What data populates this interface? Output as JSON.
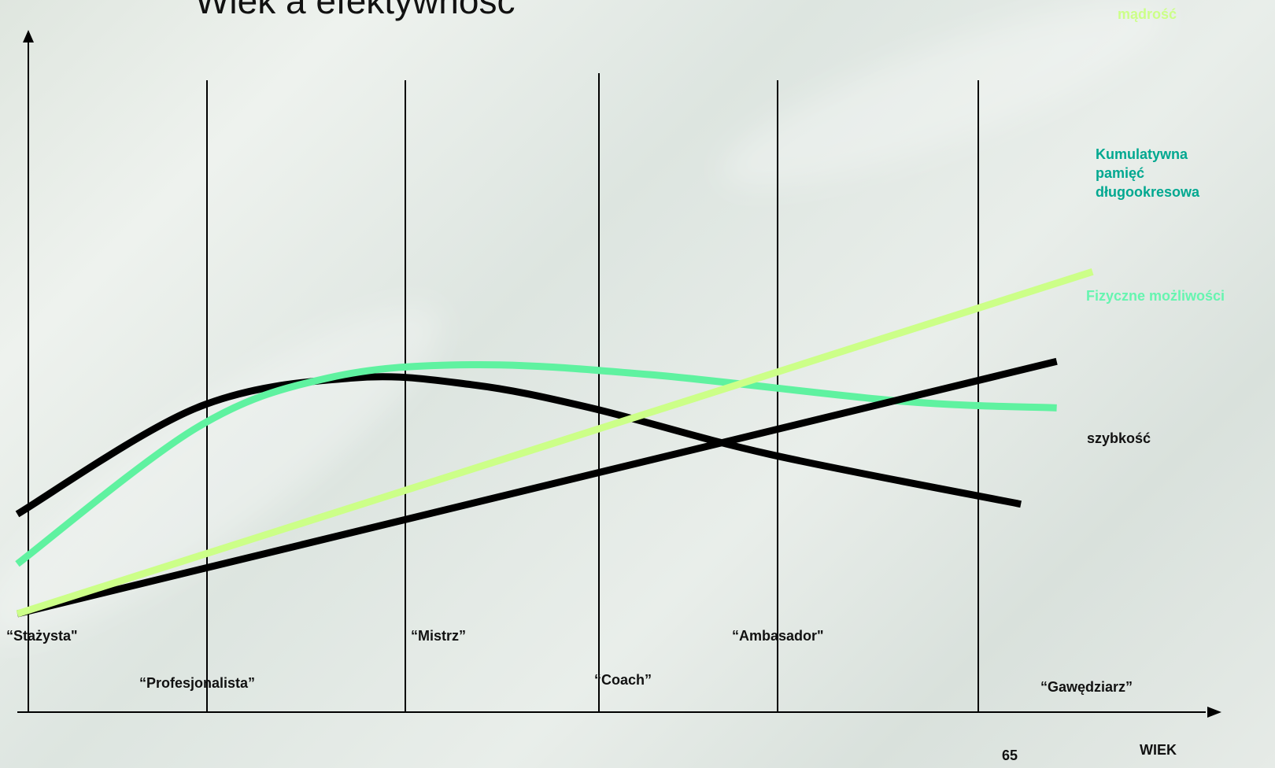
{
  "slide": {
    "title": "Wiek a efektywność"
  },
  "chart_data": {
    "type": "line",
    "title": "Wiek a efektywność",
    "xlabel": "WIEK",
    "x_tick_label": "65",
    "stages": [
      "“Stażysta\"",
      "“Profesjonalista”",
      "“Mistrz”",
      "“Coach”",
      "“Ambasador\"",
      "“Gawędziarz”"
    ],
    "series": [
      {
        "name": "szybkość",
        "color": "#000000",
        "points": [
          [
            0,
            0.3
          ],
          [
            0.15,
            0.62
          ],
          [
            0.28,
            0.71
          ],
          [
            0.38,
            0.69
          ],
          [
            0.48,
            0.62
          ],
          [
            0.63,
            0.48
          ],
          [
            0.84,
            0.33
          ]
        ]
      },
      {
        "name": "Fizyczne możliwości",
        "color": "#5ff2a0",
        "points": [
          [
            0,
            0.15
          ],
          [
            0.15,
            0.56
          ],
          [
            0.26,
            0.71
          ],
          [
            0.38,
            0.75
          ],
          [
            0.53,
            0.72
          ],
          [
            0.74,
            0.64
          ],
          [
            0.87,
            0.62
          ]
        ]
      },
      {
        "name": "Kumulatywna pamięć długookresowa",
        "color": "#000000",
        "points": [
          [
            0,
            0.0
          ],
          [
            0.87,
            0.76
          ]
        ]
      },
      {
        "name": "mądrość",
        "color": "#ccff88",
        "points": [
          [
            0,
            0.0
          ],
          [
            0.9,
            1.03
          ]
        ]
      }
    ]
  },
  "series_labels": {
    "wisdom": "mądrość",
    "memory": "Kumulatywna pamięć długookresowa",
    "memory_lines": [
      "Kumulatywna",
      "pamięć",
      "długookresowa"
    ],
    "physical": "Fizyczne możliwości",
    "speed": "szybkość"
  },
  "colors": {
    "axis": "#000000",
    "speed": "#000000",
    "physical": "#5ff2a0",
    "memory_label": "#00a890",
    "physical_label": "#66f5b0",
    "wisdom": "#ccff88"
  }
}
